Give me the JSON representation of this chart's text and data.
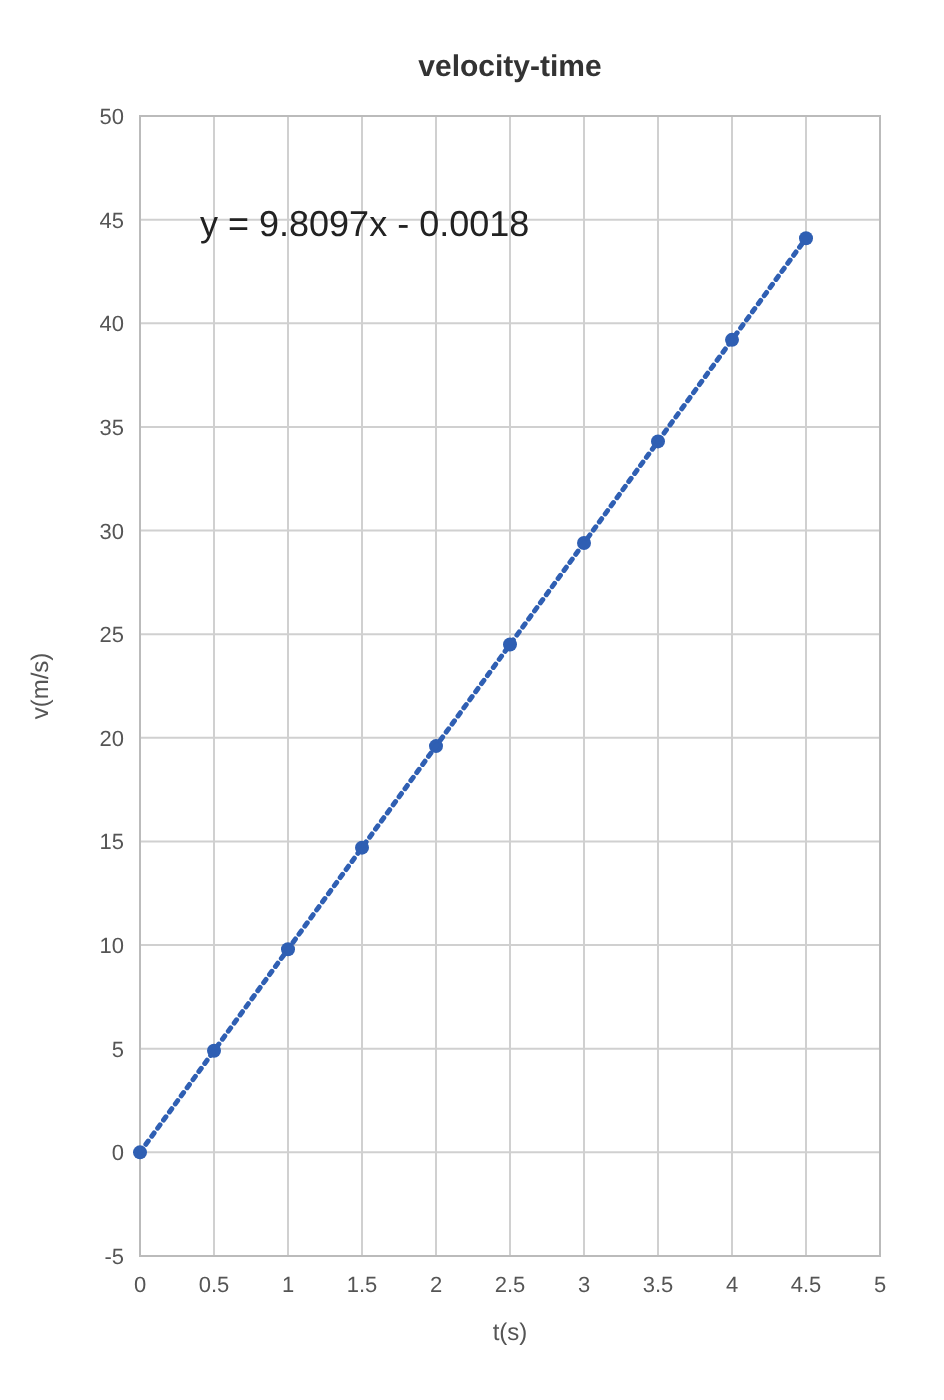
{
  "chart_data": {
    "type": "scatter",
    "title": "velocity-time",
    "xlabel": "t(s)",
    "ylabel": "v(m/s)",
    "xlim": [
      0,
      5
    ],
    "ylim": [
      -5,
      50
    ],
    "xticks": [
      0,
      0.5,
      1,
      1.5,
      2,
      2.5,
      3,
      3.5,
      4,
      4.5,
      5
    ],
    "yticks": [
      -5,
      0,
      5,
      10,
      15,
      20,
      25,
      30,
      35,
      40,
      45,
      50
    ],
    "grid": true,
    "annotations": [
      "y = 9.8097x - 0.0018"
    ],
    "series": [
      {
        "color": "#2f5fb3",
        "marker": "circle",
        "x": [
          0,
          0.5,
          1,
          1.5,
          2,
          2.5,
          3,
          3.5,
          4,
          4.5
        ],
        "values": [
          0,
          4.9,
          9.8,
          14.7,
          19.6,
          24.5,
          29.4,
          34.3,
          39.2,
          44.1
        ]
      },
      {
        "type": "line",
        "color": "#2f5fb3",
        "line_style": "dotted",
        "marker": "none",
        "x": [
          0,
          4.5
        ],
        "values": [
          0,
          44.1
        ]
      }
    ]
  }
}
